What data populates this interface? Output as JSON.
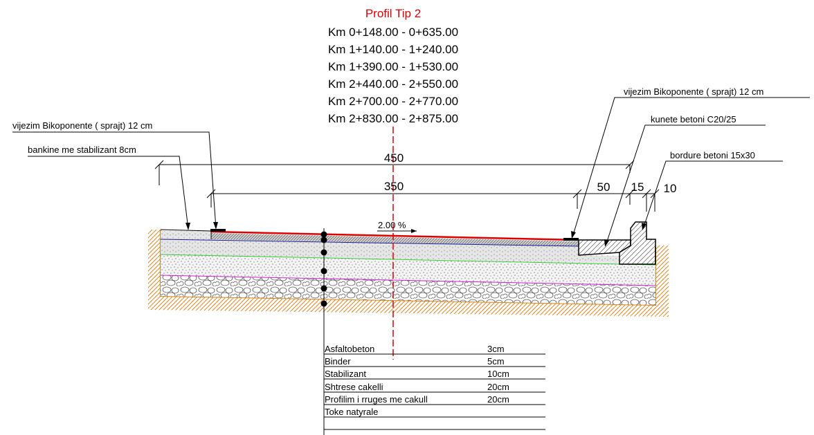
{
  "title": "Profil Tip 2",
  "km_ranges": [
    "Km 0+148.00 - 0+635.00",
    "Km 1+140.00 - 1+240.00",
    "Km 1+390.00 - 1+530.00",
    "Km 2+440.00 - 2+550.00",
    "Km 2+700.00 - 2+770.00",
    "Km 2+830.00 - 2+875.00"
  ],
  "labels": {
    "left_marking": "vijezim Bikoponente ( sprajt)  12 cm",
    "shoulder": "bankine me stabilizant 8cm",
    "right_marking": "vijezim Bikoponente ( sprajt)  12 cm",
    "gutter": "kunete betoni C20/25",
    "curb": "bordure betoni 15x30"
  },
  "dimensions": {
    "total": "450",
    "carriageway": "350",
    "gutter": "50",
    "curb_a": "15",
    "curb_b": "10"
  },
  "slope": "2.00 %",
  "layers": [
    {
      "name": "Asfaltobeton",
      "thickness": "3cm"
    },
    {
      "name": "Binder",
      "thickness": "5cm"
    },
    {
      "name": "Stabilizant",
      "thickness": "10cm"
    },
    {
      "name": "Shtrese cakelli",
      "thickness": "20cm"
    },
    {
      "name": "Profilim i rruges me cakull",
      "thickness": "20cm"
    },
    {
      "name": "Toke natyrale",
      "thickness": ""
    }
  ],
  "colors": {
    "title": "#e00000",
    "asphalt": "#e00000",
    "binder_line": "#1a1aa0",
    "stabilizant_line": "#33cc33",
    "gravel_line": "#d020d0",
    "soil": "#d9841c",
    "axis": "#e00000"
  }
}
